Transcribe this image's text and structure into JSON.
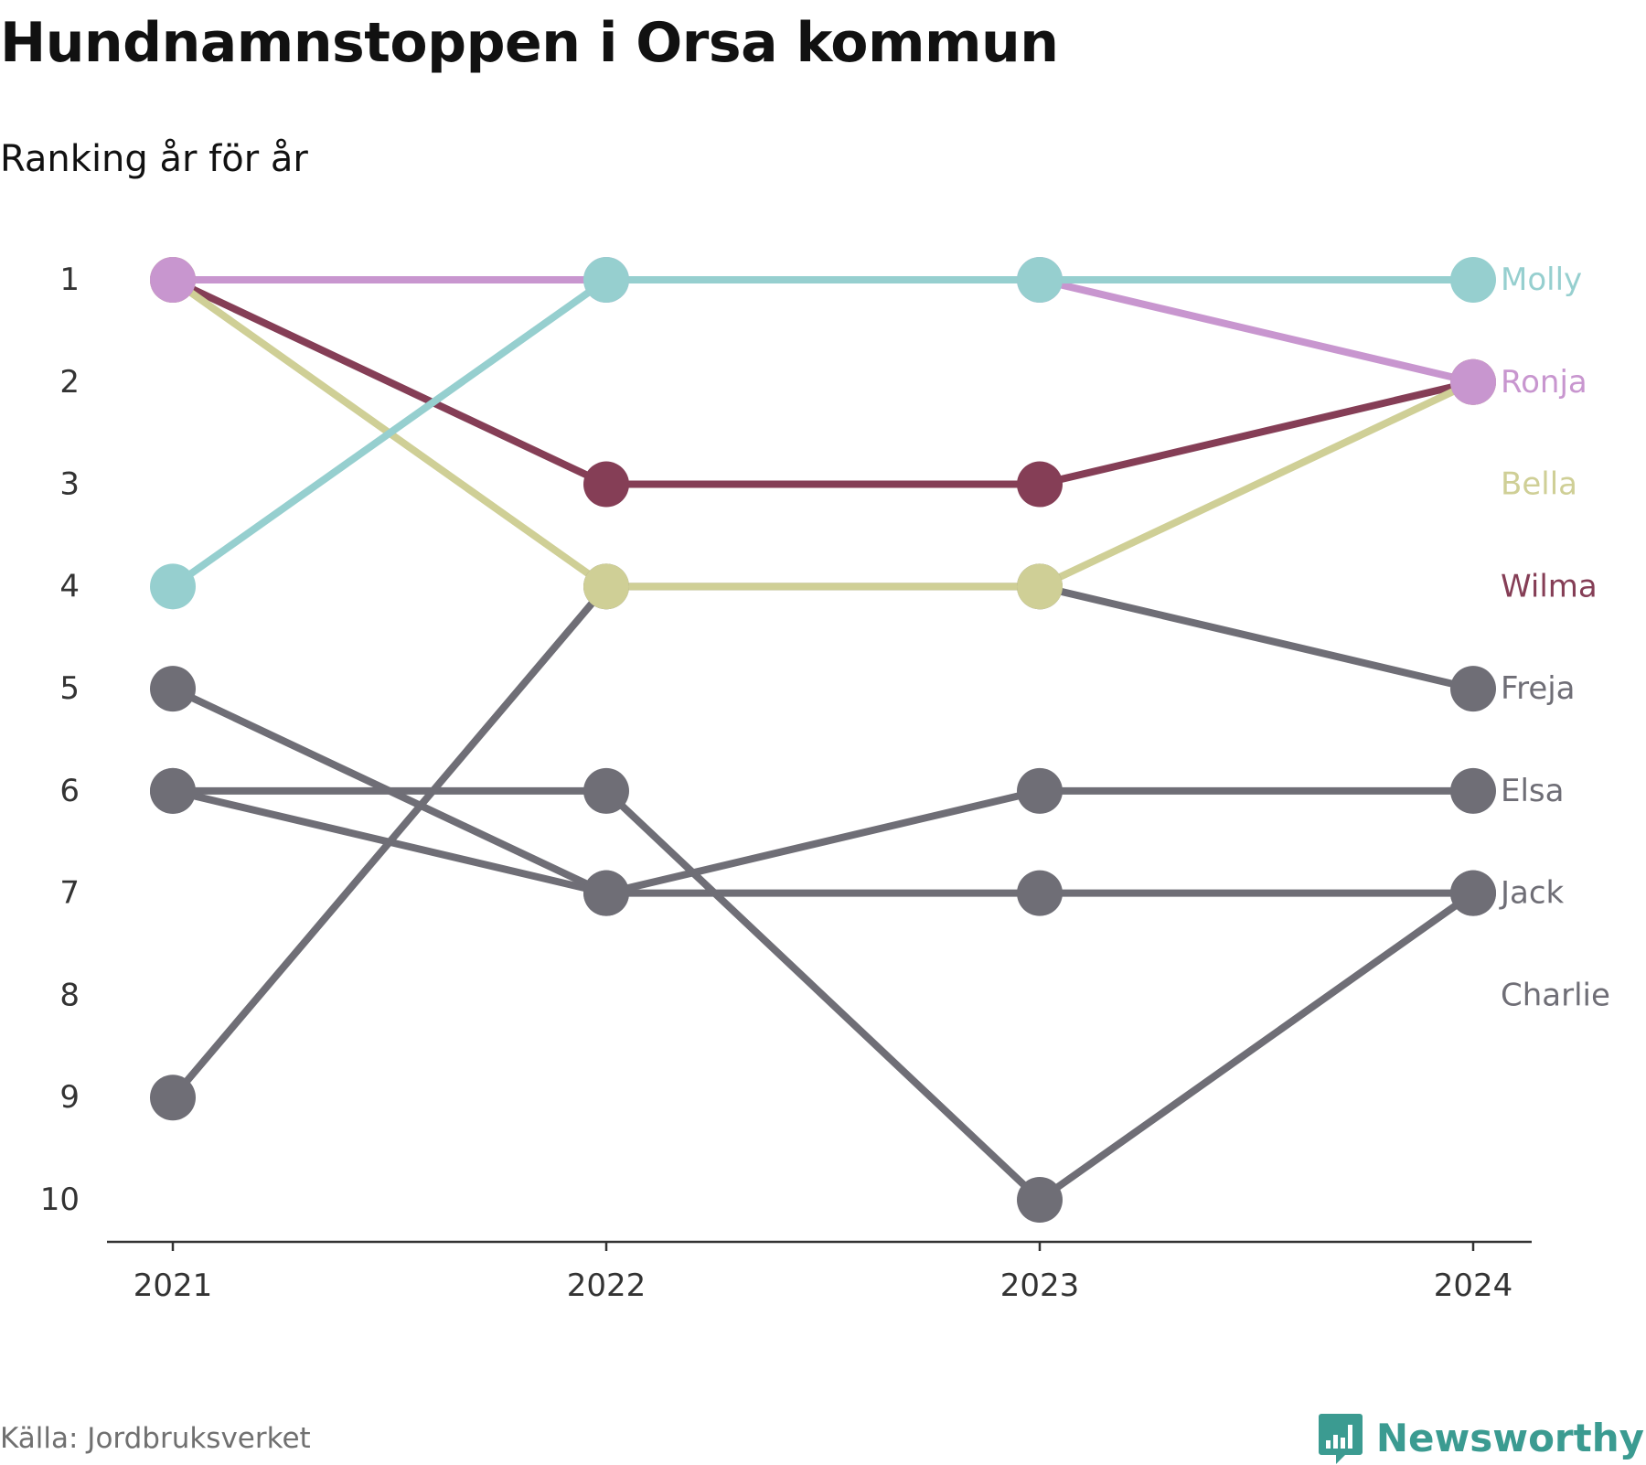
{
  "title": "Hundnamnstoppen i Orsa kommun",
  "subtitle": "Ranking år för år",
  "source": "Källa: Jordbruksverket",
  "brand": {
    "name": "Newsworthy",
    "icon": "newsworthy-logo-icon",
    "color": "#3b9b91"
  },
  "chart_data": {
    "type": "line",
    "chart_style": "bump",
    "x": [
      "2021",
      "2022",
      "2023",
      "2024"
    ],
    "ylim": [
      1,
      10
    ],
    "y_inverted": true,
    "y_ticks": [
      1,
      2,
      3,
      4,
      5,
      6,
      7,
      8,
      9,
      10
    ],
    "grid": false,
    "legend": "labels at end of lines, right",
    "series": [
      {
        "name": "Charlie",
        "color": "#6f6e76",
        "values": [
          9,
          4,
          4,
          5
        ]
      },
      {
        "name": "Jack",
        "color": "#6f6e76",
        "values": [
          5,
          7,
          7,
          7
        ]
      },
      {
        "name": "Elsa",
        "color": "#6f6e76",
        "values": [
          6,
          7,
          6,
          6
        ]
      },
      {
        "name": "Freja",
        "color": "#6f6e76",
        "values": [
          6,
          6,
          10,
          7
        ]
      },
      {
        "name": "Wilma",
        "color": "#853e56",
        "values": [
          1,
          3,
          3,
          2
        ]
      },
      {
        "name": "Bella",
        "color": "#cfcf96",
        "values": [
          1,
          4,
          4,
          2
        ]
      },
      {
        "name": "Ronja",
        "color": "#c896cf",
        "values": [
          1,
          1,
          1,
          2
        ]
      },
      {
        "name": "Molly",
        "color": "#96cfcf",
        "values": [
          4,
          1,
          1,
          1
        ]
      }
    ],
    "end_labels": [
      {
        "text": "Molly",
        "color": "#96cfcf",
        "rank": 1
      },
      {
        "text": "Ronja",
        "color": "#c896cf",
        "rank": 2
      },
      {
        "text": "Bella",
        "color": "#cfcf96",
        "rank": 3
      },
      {
        "text": "Wilma",
        "color": "#853e56",
        "rank": 4
      },
      {
        "text": "Freja",
        "color": "#6f6e76",
        "rank": 5
      },
      {
        "text": "Elsa",
        "color": "#6f6e76",
        "rank": 6
      },
      {
        "text": "Jack",
        "color": "#6f6e76",
        "rank": 7
      },
      {
        "text": "Charlie",
        "color": "#6f6e76",
        "rank": 8
      }
    ]
  }
}
